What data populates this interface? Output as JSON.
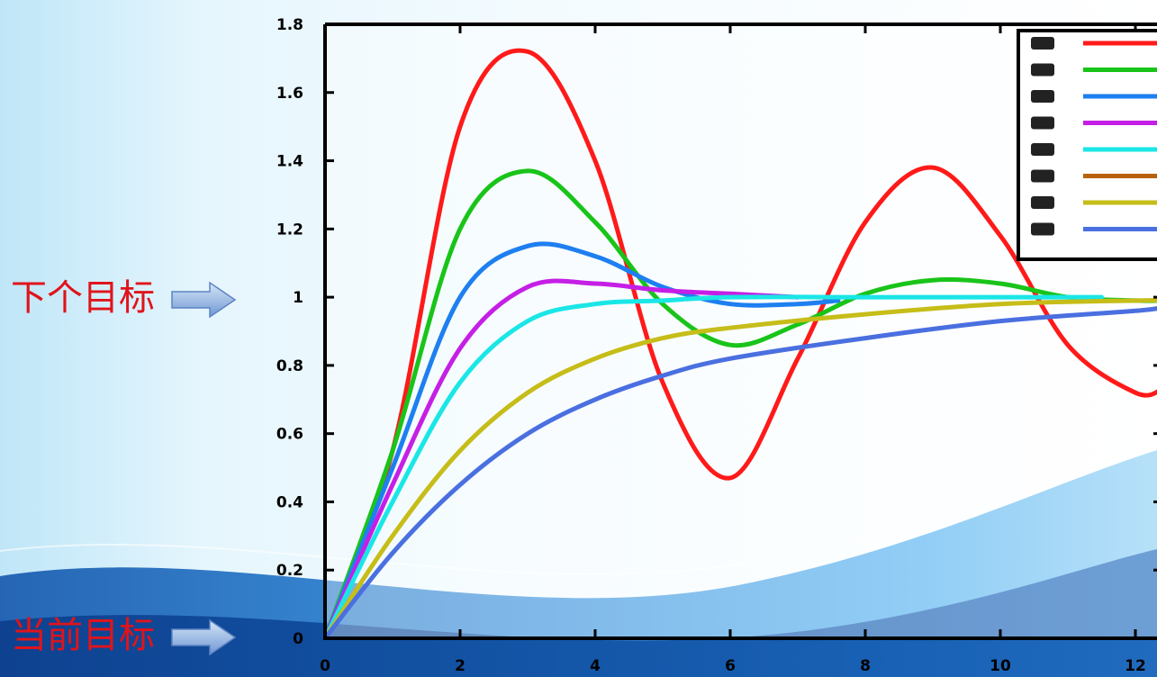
{
  "annotations": {
    "next_target": "下个目标",
    "current_target": "当前目标"
  },
  "chart_data": {
    "type": "line",
    "title": "",
    "xlabel": "",
    "ylabel": "",
    "xlim": [
      0,
      12.4
    ],
    "ylim": [
      0,
      1.8
    ],
    "x_ticks": [
      0,
      2,
      4,
      6,
      8,
      10,
      12
    ],
    "y_ticks": [
      0,
      0.2,
      0.4,
      0.6,
      0.8,
      1,
      1.2,
      1.4,
      1.6,
      1.8
    ],
    "x_tick_labels": [
      "0",
      "2",
      "4",
      "6",
      "8",
      "10",
      "12"
    ],
    "y_tick_labels": [
      "0",
      "0.2",
      "0.4",
      "0.6",
      "0.8",
      "1",
      "1.2",
      "1.4",
      "1.6",
      "1.8"
    ],
    "legend_position": "top-right",
    "series": [
      {
        "color": "#ff1a1a",
        "x": [
          0,
          1,
          2,
          3,
          4,
          5,
          6,
          7,
          8,
          9,
          10,
          11,
          12,
          12.4
        ],
        "values": [
          0,
          0.55,
          1.5,
          1.72,
          1.4,
          0.75,
          0.47,
          0.82,
          1.22,
          1.38,
          1.18,
          0.86,
          0.72,
          0.73
        ]
      },
      {
        "color": "#19c419",
        "x": [
          0,
          1,
          2,
          3,
          4,
          5,
          6,
          7,
          8,
          9,
          10,
          11,
          12,
          12.4
        ],
        "values": [
          0,
          0.55,
          1.2,
          1.37,
          1.22,
          0.98,
          0.86,
          0.92,
          1.01,
          1.05,
          1.04,
          1.0,
          0.99,
          0.99
        ]
      },
      {
        "color": "#1e7ff0",
        "x": [
          0,
          1,
          2,
          3,
          4,
          5,
          6,
          7,
          7.6
        ],
        "values": [
          0,
          0.5,
          1.0,
          1.15,
          1.12,
          1.03,
          0.98,
          0.98,
          0.99
        ]
      },
      {
        "color": "#c51fe6",
        "x": [
          0,
          1,
          2,
          3,
          4,
          5,
          6,
          7
        ],
        "values": [
          0,
          0.45,
          0.85,
          1.03,
          1.04,
          1.02,
          1.01,
          1.0
        ]
      },
      {
        "color": "#1ae6e6",
        "x": [
          0,
          1,
          2,
          3,
          4,
          5,
          6,
          8,
          10,
          11.5
        ],
        "values": [
          0,
          0.4,
          0.75,
          0.93,
          0.98,
          0.99,
          1.0,
          1.0,
          1.0,
          1.0
        ]
      },
      {
        "color": "#b8620f",
        "x": [],
        "values": []
      },
      {
        "color": "#c6bd19",
        "x": [
          0,
          1,
          2,
          3,
          4,
          5,
          6,
          8,
          10,
          12,
          12.4
        ],
        "values": [
          0,
          0.3,
          0.55,
          0.72,
          0.82,
          0.88,
          0.91,
          0.95,
          0.98,
          0.99,
          0.99
        ]
      },
      {
        "color": "#4a6fe0",
        "x": [
          0,
          1,
          2,
          3,
          4,
          5,
          6,
          8,
          10,
          12,
          12.4
        ],
        "values": [
          0,
          0.25,
          0.45,
          0.6,
          0.7,
          0.77,
          0.82,
          0.88,
          0.93,
          0.96,
          0.97
        ]
      }
    ]
  }
}
